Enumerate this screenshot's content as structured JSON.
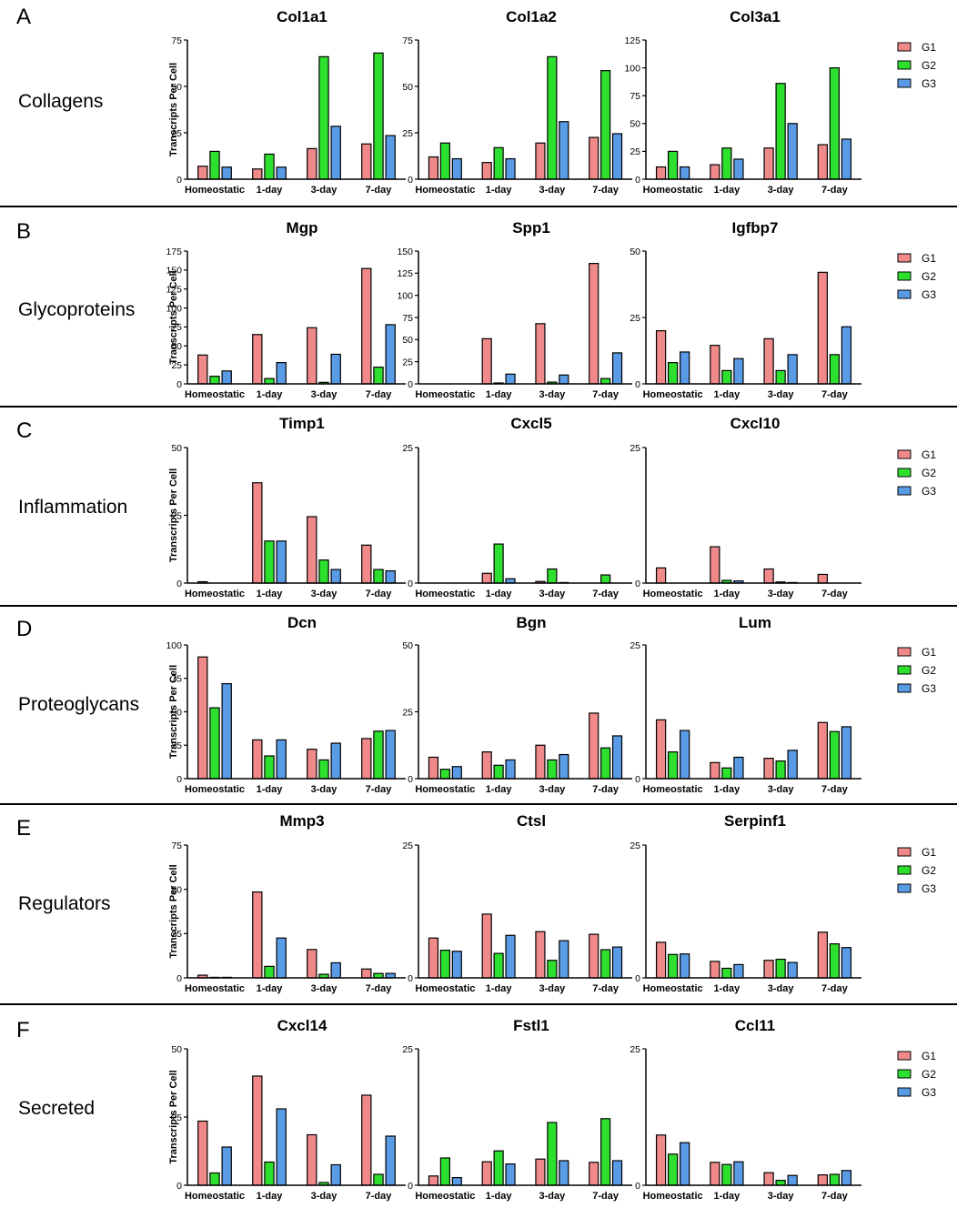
{
  "figure": {
    "categories": [
      "Homeostatic",
      "1-day",
      "3-day",
      "7-day"
    ],
    "series_names": [
      "G1",
      "G2",
      "G3"
    ],
    "colors": {
      "G1": "#f08a8a",
      "G2": "#2ee02e",
      "G3": "#5a9be6"
    },
    "ylabel": "Transcripts Per Cell"
  },
  "chart_data": [
    {
      "row": "A",
      "section": "Collagens",
      "type": "bar",
      "title": "Col1a1",
      "ylim": [
        0,
        75
      ],
      "ticks": [
        0,
        25,
        50,
        75
      ],
      "categories": [
        "Homeostatic",
        "1-day",
        "3-day",
        "7-day"
      ],
      "series": [
        {
          "name": "G1",
          "values": [
            7,
            5.5,
            16.5,
            19
          ]
        },
        {
          "name": "G2",
          "values": [
            15,
            13.5,
            66,
            68
          ]
        },
        {
          "name": "G3",
          "values": [
            6.5,
            6.5,
            28.5,
            23.5
          ]
        }
      ]
    },
    {
      "row": "A",
      "section": "Collagens",
      "type": "bar",
      "title": "Col1a2",
      "ylim": [
        0,
        75
      ],
      "ticks": [
        0,
        25,
        50,
        75
      ],
      "categories": [
        "Homeostatic",
        "1-day",
        "3-day",
        "7-day"
      ],
      "series": [
        {
          "name": "G1",
          "values": [
            12,
            9,
            19.5,
            22.5
          ]
        },
        {
          "name": "G2",
          "values": [
            19.5,
            17,
            66,
            58.5
          ]
        },
        {
          "name": "G3",
          "values": [
            11,
            11,
            31,
            24.5
          ]
        }
      ]
    },
    {
      "row": "A",
      "section": "Collagens",
      "type": "bar",
      "title": "Col3a1",
      "ylim": [
        0,
        125
      ],
      "ticks": [
        0,
        25,
        50,
        75,
        100,
        125
      ],
      "categories": [
        "Homeostatic",
        "1-day",
        "3-day",
        "7-day"
      ],
      "series": [
        {
          "name": "G1",
          "values": [
            11,
            13,
            28,
            31
          ]
        },
        {
          "name": "G2",
          "values": [
            25,
            28,
            86,
            100
          ]
        },
        {
          "name": "G3",
          "values": [
            11,
            18,
            50,
            36
          ]
        }
      ]
    },
    {
      "row": "B",
      "section": "Glycoproteins",
      "type": "bar",
      "title": "Mgp",
      "ylim": [
        0,
        175
      ],
      "ticks": [
        0,
        25,
        50,
        75,
        100,
        125,
        150,
        175
      ],
      "categories": [
        "Homeostatic",
        "1-day",
        "3-day",
        "7-day"
      ],
      "series": [
        {
          "name": "G1",
          "values": [
            38,
            65,
            74,
            152
          ]
        },
        {
          "name": "G2",
          "values": [
            10,
            7,
            2,
            22
          ]
        },
        {
          "name": "G3",
          "values": [
            17,
            28,
            39,
            78
          ]
        }
      ]
    },
    {
      "row": "B",
      "section": "Glycoproteins",
      "type": "bar",
      "title": "Spp1",
      "ylim": [
        0,
        150
      ],
      "ticks": [
        0,
        25,
        50,
        75,
        100,
        125,
        150
      ],
      "categories": [
        "Homeostatic",
        "1-day",
        "3-day",
        "7-day"
      ],
      "series": [
        {
          "name": "G1",
          "values": [
            0,
            51,
            68,
            136
          ]
        },
        {
          "name": "G2",
          "values": [
            0,
            1,
            2,
            6
          ]
        },
        {
          "name": "G3",
          "values": [
            0,
            11,
            10,
            35
          ]
        }
      ]
    },
    {
      "row": "B",
      "section": "Glycoproteins",
      "type": "bar",
      "title": "Igfbp7",
      "ylim": [
        0,
        50
      ],
      "ticks": [
        0,
        25,
        50
      ],
      "categories": [
        "Homeostatic",
        "1-day",
        "3-day",
        "7-day"
      ],
      "series": [
        {
          "name": "G1",
          "values": [
            20,
            14.5,
            17,
            42
          ]
        },
        {
          "name": "G2",
          "values": [
            8,
            5,
            5,
            11
          ]
        },
        {
          "name": "G3",
          "values": [
            12,
            9.5,
            11,
            21.5
          ]
        }
      ]
    },
    {
      "row": "C",
      "section": "Inflammation",
      "type": "bar",
      "title": "Timp1",
      "ylim": [
        0,
        50
      ],
      "ticks": [
        0,
        25,
        50
      ],
      "categories": [
        "Homeostatic",
        "1-day",
        "3-day",
        "7-day"
      ],
      "series": [
        {
          "name": "G1",
          "values": [
            0.5,
            37,
            24.5,
            14
          ]
        },
        {
          "name": "G2",
          "values": [
            0,
            15.5,
            8.5,
            5
          ]
        },
        {
          "name": "G3",
          "values": [
            0,
            15.5,
            5,
            4.5
          ]
        }
      ]
    },
    {
      "row": "C",
      "section": "Inflammation",
      "type": "bar",
      "title": "Cxcl5",
      "ylim": [
        0,
        25
      ],
      "ticks": [
        0,
        25
      ],
      "categories": [
        "Homeostatic",
        "1-day",
        "3-day",
        "7-day"
      ],
      "series": [
        {
          "name": "G1",
          "values": [
            0,
            1.8,
            0.3,
            0
          ]
        },
        {
          "name": "G2",
          "values": [
            0,
            7.2,
            2.6,
            1.5
          ]
        },
        {
          "name": "G3",
          "values": [
            0,
            0.8,
            0.1,
            0
          ]
        }
      ]
    },
    {
      "row": "C",
      "section": "Inflammation",
      "type": "bar",
      "title": "Cxcl10",
      "ylim": [
        0,
        25
      ],
      "ticks": [
        0,
        25
      ],
      "categories": [
        "Homeostatic",
        "1-day",
        "3-day",
        "7-day"
      ],
      "series": [
        {
          "name": "G1",
          "values": [
            2.8,
            6.7,
            2.6,
            1.6
          ]
        },
        {
          "name": "G2",
          "values": [
            0,
            0.5,
            0.2,
            0
          ]
        },
        {
          "name": "G3",
          "values": [
            0,
            0.4,
            0.1,
            0
          ]
        }
      ]
    },
    {
      "row": "D",
      "section": "Proteoglycans",
      "type": "bar",
      "title": "Dcn",
      "ylim": [
        0,
        100
      ],
      "ticks": [
        0,
        25,
        50,
        75,
        100
      ],
      "categories": [
        "Homeostatic",
        "1-day",
        "3-day",
        "7-day"
      ],
      "series": [
        {
          "name": "G1",
          "values": [
            91,
            29,
            22,
            30
          ]
        },
        {
          "name": "G2",
          "values": [
            53,
            17,
            14,
            35.5
          ]
        },
        {
          "name": "G3",
          "values": [
            71,
            29,
            26.5,
            36
          ]
        }
      ]
    },
    {
      "row": "D",
      "section": "Proteoglycans",
      "type": "bar",
      "title": "Bgn",
      "ylim": [
        0,
        50
      ],
      "ticks": [
        0,
        25,
        50
      ],
      "categories": [
        "Homeostatic",
        "1-day",
        "3-day",
        "7-day"
      ],
      "series": [
        {
          "name": "G1",
          "values": [
            8,
            10,
            12.5,
            24.5
          ]
        },
        {
          "name": "G2",
          "values": [
            3.5,
            5,
            7,
            11.5
          ]
        },
        {
          "name": "G3",
          "values": [
            4.5,
            7,
            9,
            16
          ]
        }
      ]
    },
    {
      "row": "D",
      "section": "Proteoglycans",
      "type": "bar",
      "title": "Lum",
      "ylim": [
        0,
        25
      ],
      "ticks": [
        0,
        25
      ],
      "categories": [
        "Homeostatic",
        "1-day",
        "3-day",
        "7-day"
      ],
      "series": [
        {
          "name": "G1",
          "values": [
            11,
            3,
            3.8,
            10.5
          ]
        },
        {
          "name": "G2",
          "values": [
            5,
            2,
            3.3,
            8.8
          ]
        },
        {
          "name": "G3",
          "values": [
            9,
            4,
            5.3,
            9.7
          ]
        }
      ]
    },
    {
      "row": "E",
      "section": "Regulators",
      "type": "bar",
      "title": "Mmp3",
      "ylim": [
        0,
        75
      ],
      "ticks": [
        0,
        25,
        50,
        75
      ],
      "categories": [
        "Homeostatic",
        "1-day",
        "3-day",
        "7-day"
      ],
      "series": [
        {
          "name": "G1",
          "values": [
            1.5,
            48.5,
            16,
            5
          ]
        },
        {
          "name": "G2",
          "values": [
            0.3,
            6.5,
            2,
            2.5
          ]
        },
        {
          "name": "G3",
          "values": [
            0.3,
            22.5,
            8.5,
            2.5
          ]
        }
      ]
    },
    {
      "row": "E",
      "section": "Regulators",
      "type": "bar",
      "title": "Ctsl",
      "ylim": [
        0,
        25
      ],
      "ticks": [
        0,
        25
      ],
      "categories": [
        "Homeostatic",
        "1-day",
        "3-day",
        "7-day"
      ],
      "series": [
        {
          "name": "G1",
          "values": [
            7.5,
            12,
            8.7,
            8.2
          ]
        },
        {
          "name": "G2",
          "values": [
            5.2,
            4.6,
            3.3,
            5.3
          ]
        },
        {
          "name": "G3",
          "values": [
            5,
            8,
            7,
            5.8
          ]
        }
      ]
    },
    {
      "row": "E",
      "section": "Regulators",
      "type": "bar",
      "title": "Serpinf1",
      "ylim": [
        0,
        25
      ],
      "ticks": [
        0,
        25
      ],
      "categories": [
        "Homeostatic",
        "1-day",
        "3-day",
        "7-day"
      ],
      "series": [
        {
          "name": "G1",
          "values": [
            6.7,
            3.1,
            3.3,
            8.6
          ]
        },
        {
          "name": "G2",
          "values": [
            4.4,
            1.8,
            3.5,
            6.4
          ]
        },
        {
          "name": "G3",
          "values": [
            4.5,
            2.5,
            2.9,
            5.7
          ]
        }
      ]
    },
    {
      "row": "F",
      "section": "Secreted",
      "type": "bar",
      "title": "Cxcl14",
      "ylim": [
        0,
        50
      ],
      "ticks": [
        0,
        25,
        50
      ],
      "categories": [
        "Homeostatic",
        "1-day",
        "3-day",
        "7-day"
      ],
      "series": [
        {
          "name": "G1",
          "values": [
            23.5,
            40,
            18.5,
            33
          ]
        },
        {
          "name": "G2",
          "values": [
            4.5,
            8.5,
            1,
            4
          ]
        },
        {
          "name": "G3",
          "values": [
            14,
            28,
            7.5,
            18
          ]
        }
      ]
    },
    {
      "row": "F",
      "section": "Secreted",
      "type": "bar",
      "title": "Fstl1",
      "ylim": [
        0,
        25
      ],
      "ticks": [
        0,
        25
      ],
      "categories": [
        "Homeostatic",
        "1-day",
        "3-day",
        "7-day"
      ],
      "series": [
        {
          "name": "G1",
          "values": [
            1.7,
            4.3,
            4.8,
            4.2
          ]
        },
        {
          "name": "G2",
          "values": [
            5,
            6.3,
            11.5,
            12.2
          ]
        },
        {
          "name": "G3",
          "values": [
            1.4,
            3.9,
            4.5,
            4.5
          ]
        }
      ]
    },
    {
      "row": "F",
      "section": "Secreted",
      "type": "bar",
      "title": "Ccl11",
      "ylim": [
        0,
        25
      ],
      "ticks": [
        0,
        25
      ],
      "categories": [
        "Homeostatic",
        "1-day",
        "3-day",
        "7-day"
      ],
      "series": [
        {
          "name": "G1",
          "values": [
            9.2,
            4.2,
            2.3,
            1.9
          ]
        },
        {
          "name": "G2",
          "values": [
            5.7,
            3.8,
            0.9,
            2
          ]
        },
        {
          "name": "G3",
          "values": [
            7.8,
            4.3,
            1.8,
            2.7
          ]
        }
      ]
    }
  ]
}
